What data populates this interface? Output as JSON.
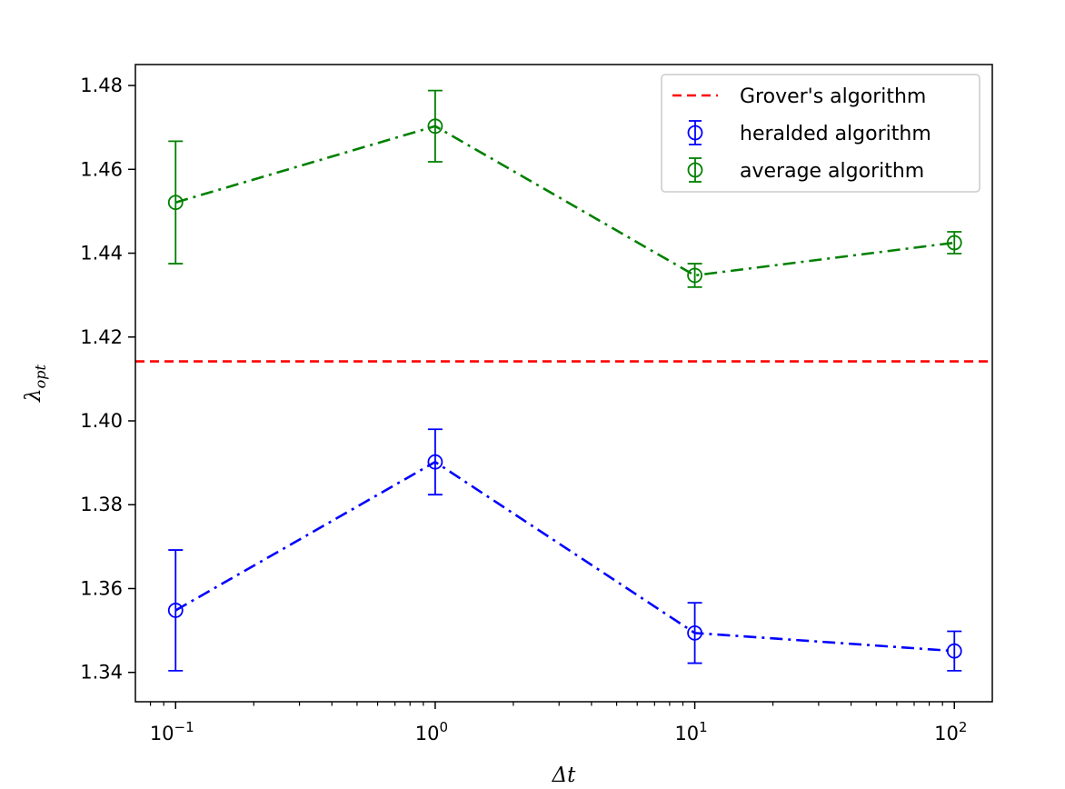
{
  "chart_data": {
    "type": "line",
    "title": "",
    "xlabel": "Δt",
    "ylabel": "λ_opt",
    "xscale": "log",
    "xlim": [
      0.07,
      140
    ],
    "ylim": [
      1.333,
      1.485
    ],
    "x_ticks": [
      {
        "value": 0.1,
        "base": "10",
        "exp": "−1"
      },
      {
        "value": 1,
        "base": "10",
        "exp": "0"
      },
      {
        "value": 10,
        "base": "10",
        "exp": "1"
      },
      {
        "value": 100,
        "base": "10",
        "exp": "2"
      }
    ],
    "y_ticks": [
      "1.34",
      "1.36",
      "1.38",
      "1.40",
      "1.42",
      "1.44",
      "1.46",
      "1.48"
    ],
    "grid": false,
    "legend_position": "top-right",
    "reference_line": {
      "name": "Grover's algorithm",
      "y": 1.4142,
      "color": "#ff0000",
      "style": "dashed"
    },
    "series": [
      {
        "name": "heralded algorithm",
        "color": "#0000ff",
        "x": [
          0.1,
          1,
          10,
          100
        ],
        "y": [
          1.3548,
          1.3902,
          1.3494,
          1.3451
        ],
        "yerr": [
          0.0144,
          0.0078,
          0.0072,
          0.0047
        ],
        "marker": "open-circle",
        "linestyle": "dashdot"
      },
      {
        "name": "average algorithm",
        "color": "#008000",
        "x": [
          0.1,
          1,
          10,
          100
        ],
        "y": [
          1.4521,
          1.4703,
          1.4347,
          1.4425
        ],
        "yerr": [
          0.0146,
          0.0085,
          0.0028,
          0.0026
        ],
        "marker": "open-circle",
        "linestyle": "dashdot"
      }
    ]
  }
}
